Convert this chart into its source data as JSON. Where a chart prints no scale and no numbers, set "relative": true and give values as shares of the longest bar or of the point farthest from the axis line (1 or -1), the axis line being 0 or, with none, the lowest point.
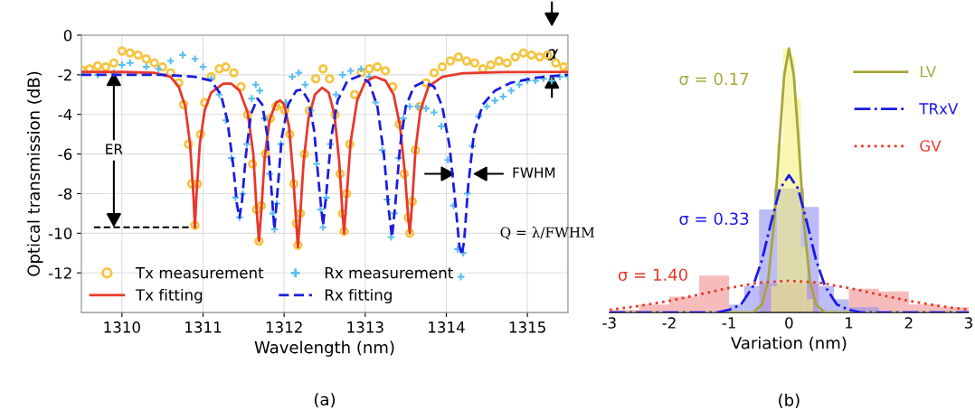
{
  "chart_data": [
    {
      "type": "line",
      "title": "(a)",
      "xlabel": "Wavelength (nm)",
      "ylabel": "Optical transmission (dB)",
      "xlim": [
        1309.5,
        1315.5
      ],
      "xticks": [
        1310,
        1311,
        1312,
        1313,
        1314,
        1315
      ],
      "ylim": [
        -14,
        0
      ],
      "yticks": [
        0,
        -2,
        -4,
        -6,
        -8,
        -10,
        -12
      ],
      "grid": true,
      "legend": "bottom left",
      "series": [
        {
          "name": "Tx measurement",
          "type": "scatter",
          "marker": "circle",
          "color": "#f5c542",
          "x": [
            1309.5,
            1309.6,
            1309.7,
            1309.8,
            1309.9,
            1310.0,
            1310.1,
            1310.2,
            1310.3,
            1310.4,
            1310.5,
            1310.6,
            1310.7,
            1310.76,
            1310.82,
            1310.86,
            1310.9,
            1310.93,
            1310.97,
            1311.02,
            1311.1,
            1311.2,
            1311.28,
            1311.38,
            1311.47,
            1311.55,
            1311.61,
            1311.66,
            1311.69,
            1311.72,
            1311.77,
            1311.83,
            1311.9,
            1311.95,
            1312.01,
            1312.07,
            1312.12,
            1312.15,
            1312.17,
            1312.2,
            1312.25,
            1312.31,
            1312.39,
            1312.48,
            1312.56,
            1312.63,
            1312.69,
            1312.72,
            1312.74,
            1312.77,
            1312.81,
            1312.87,
            1312.95,
            1313.05,
            1313.15,
            1313.25,
            1313.34,
            1313.42,
            1313.48,
            1313.53,
            1313.55,
            1313.58,
            1313.62,
            1313.67,
            1313.75,
            1313.85,
            1313.95,
            1314.05,
            1314.15,
            1314.25,
            1314.35,
            1314.45,
            1314.55,
            1314.65,
            1314.75,
            1314.85,
            1314.95,
            1315.05,
            1315.15,
            1315.25,
            1315.35,
            1315.45,
            1315.5
          ],
          "values": [
            -1.75,
            -1.7,
            -1.55,
            -1.6,
            -1.4,
            -0.8,
            -0.9,
            -1.0,
            -1.2,
            -1.4,
            -1.6,
            -1.9,
            -2.4,
            -3.5,
            -5.5,
            -7.5,
            -9.6,
            -7.5,
            -5.0,
            -3.4,
            -2.1,
            -1.7,
            -1.6,
            -1.9,
            -2.6,
            -4.0,
            -6.5,
            -8.8,
            -10.4,
            -8.6,
            -6.0,
            -4.2,
            -3.6,
            -3.5,
            -3.8,
            -5.0,
            -7.5,
            -9.5,
            -10.6,
            -9.0,
            -6.0,
            -3.8,
            -2.2,
            -1.7,
            -2.2,
            -4.0,
            -7.0,
            -9.0,
            -9.9,
            -8.0,
            -5.5,
            -3.0,
            -1.9,
            -1.7,
            -1.6,
            -1.8,
            -2.6,
            -4.5,
            -7.0,
            -9.2,
            -10.0,
            -8.4,
            -5.8,
            -3.6,
            -2.4,
            -1.9,
            -1.6,
            -1.3,
            -1.1,
            -1.3,
            -1.4,
            -1.7,
            -1.5,
            -1.3,
            -1.4,
            -1.1,
            -0.9,
            -1.0,
            -1.1,
            -1.0,
            -1.4,
            -1.6,
            -1.8
          ]
        },
        {
          "name": "Tx fitting",
          "line_style": "solid",
          "color": "#e8382a",
          "x": [
            1309.5,
            1310.0,
            1310.4,
            1310.6,
            1310.7,
            1310.78,
            1310.84,
            1310.88,
            1310.9,
            1310.92,
            1310.96,
            1311.02,
            1311.1,
            1311.25,
            1311.35,
            1311.45,
            1311.55,
            1311.62,
            1311.66,
            1311.69,
            1311.72,
            1311.76,
            1311.82,
            1311.9,
            1311.95,
            1312.0,
            1312.06,
            1312.11,
            1312.15,
            1312.17,
            1312.2,
            1312.24,
            1312.3,
            1312.38,
            1312.47,
            1312.55,
            1312.62,
            1312.68,
            1312.72,
            1312.74,
            1312.77,
            1312.82,
            1312.9,
            1313.0,
            1313.12,
            1313.25,
            1313.35,
            1313.43,
            1313.49,
            1313.53,
            1313.55,
            1313.58,
            1313.62,
            1313.68,
            1313.78,
            1313.95,
            1314.2,
            1314.7,
            1315.5
          ],
          "values": [
            -1.85,
            -1.86,
            -1.9,
            -2.1,
            -2.6,
            -3.6,
            -5.5,
            -8.0,
            -9.7,
            -8.0,
            -5.5,
            -3.8,
            -2.9,
            -2.45,
            -2.45,
            -2.8,
            -3.9,
            -6.0,
            -8.8,
            -10.4,
            -8.8,
            -6.2,
            -4.3,
            -3.4,
            -3.3,
            -3.5,
            -4.6,
            -7.0,
            -9.5,
            -10.7,
            -9.0,
            -6.4,
            -4.2,
            -3.0,
            -2.65,
            -2.9,
            -4.0,
            -6.4,
            -9.0,
            -10.0,
            -8.2,
            -5.4,
            -3.3,
            -2.35,
            -2.1,
            -2.3,
            -3.0,
            -4.6,
            -7.0,
            -9.2,
            -10.0,
            -8.4,
            -5.8,
            -3.8,
            -2.6,
            -2.1,
            -1.92,
            -1.87,
            -1.85
          ]
        },
        {
          "name": "Rx measurement",
          "type": "scatter",
          "marker": "cross",
          "color": "#5bbff0",
          "x": [
            1309.5,
            1309.7,
            1309.9,
            1310.0,
            1310.1,
            1310.3,
            1310.45,
            1310.6,
            1310.75,
            1310.9,
            1311.0,
            1311.1,
            1311.2,
            1311.28,
            1311.35,
            1311.4,
            1311.45,
            1311.49,
            1311.54,
            1311.6,
            1311.65,
            1311.7,
            1311.76,
            1311.82,
            1311.86,
            1311.88,
            1311.91,
            1311.96,
            1312.02,
            1312.1,
            1312.18,
            1312.26,
            1312.33,
            1312.4,
            1312.45,
            1312.48,
            1312.52,
            1312.57,
            1312.64,
            1312.72,
            1312.82,
            1312.95,
            1313.05,
            1313.13,
            1313.21,
            1313.27,
            1313.32,
            1313.36,
            1313.41,
            1313.47,
            1313.55,
            1313.65,
            1313.75,
            1313.85,
            1313.94,
            1314.02,
            1314.09,
            1314.14,
            1314.18,
            1314.21,
            1314.26,
            1314.32,
            1314.4,
            1314.5,
            1314.6,
            1314.7,
            1314.8,
            1314.9,
            1315.0,
            1315.1,
            1315.2,
            1315.3,
            1315.4,
            1315.5
          ],
          "values": [
            -1.95,
            -2.0,
            -1.9,
            -1.5,
            -1.4,
            -1.6,
            -1.7,
            -1.3,
            -1.0,
            -1.2,
            -1.6,
            -2.2,
            -3.0,
            -4.3,
            -6.2,
            -8.2,
            -9.2,
            -8.0,
            -5.5,
            -3.2,
            -2.5,
            -2.8,
            -4.2,
            -7.0,
            -9.0,
            -9.8,
            -8.5,
            -5.5,
            -3.4,
            -2.1,
            -1.9,
            -2.5,
            -3.8,
            -6.5,
            -8.8,
            -9.7,
            -8.2,
            -5.5,
            -3.0,
            -2.0,
            -1.8,
            -1.7,
            -2.1,
            -3.4,
            -5.8,
            -8.3,
            -10.2,
            -9.0,
            -6.2,
            -4.2,
            -3.6,
            -3.6,
            -3.7,
            -3.9,
            -4.6,
            -6.3,
            -8.6,
            -10.8,
            -12.2,
            -11.0,
            -8.0,
            -5.6,
            -4.1,
            -3.6,
            -3.3,
            -3.1,
            -2.8,
            -2.5,
            -2.3,
            -2.3,
            -2.2,
            -2.3,
            -2.1,
            -2.1
          ]
        },
        {
          "name": "Rx fitting",
          "line_style": "dashed",
          "color": "#1c1ce0",
          "x": [
            1309.5,
            1310.5,
            1310.9,
            1311.1,
            1311.22,
            1311.3,
            1311.37,
            1311.42,
            1311.45,
            1311.48,
            1311.53,
            1311.59,
            1311.67,
            1311.73,
            1311.79,
            1311.84,
            1311.88,
            1311.92,
            1311.97,
            1312.05,
            1312.15,
            1312.22,
            1312.3,
            1312.37,
            1312.43,
            1312.48,
            1312.52,
            1312.58,
            1312.66,
            1312.78,
            1312.93,
            1313.05,
            1313.15,
            1313.23,
            1313.29,
            1313.33,
            1313.37,
            1313.43,
            1313.5,
            1313.6,
            1313.72,
            1313.85,
            1313.95,
            1314.04,
            1314.11,
            1314.16,
            1314.19,
            1314.22,
            1314.27,
            1314.34,
            1314.45,
            1314.6,
            1314.8,
            1315.1,
            1315.5
          ],
          "values": [
            -2.0,
            -2.0,
            -2.1,
            -2.3,
            -3.0,
            -4.3,
            -6.5,
            -8.6,
            -9.2,
            -8.4,
            -6.0,
            -4.0,
            -3.2,
            -3.5,
            -5.0,
            -7.6,
            -9.8,
            -7.8,
            -5.2,
            -3.5,
            -2.8,
            -2.75,
            -3.3,
            -4.8,
            -7.6,
            -9.6,
            -8.0,
            -5.2,
            -3.3,
            -2.3,
            -2.05,
            -2.4,
            -3.6,
            -6.0,
            -8.8,
            -10.2,
            -8.6,
            -5.6,
            -3.6,
            -2.6,
            -2.35,
            -2.6,
            -3.6,
            -5.6,
            -8.4,
            -10.6,
            -11.1,
            -10.4,
            -7.6,
            -5.0,
            -3.5,
            -2.8,
            -2.4,
            -2.15,
            -2.0
          ]
        }
      ],
      "annotations": [
        {
          "text": "ER",
          "x": 1309.9,
          "y": -9.7
        },
        "FWHM",
        "Q = λ/FWHM",
        "α"
      ],
      "ref_lines": [
        {
          "axis": "y",
          "value": -9.7,
          "color": "#000000",
          "line_style": "dashed"
        }
      ]
    },
    {
      "type": "histogram",
      "title": "(b)",
      "xlabel": "Variation (nm)",
      "relative": true,
      "xlim": [
        -3,
        3
      ],
      "xticks": [
        -3,
        -2,
        -1,
        0,
        1,
        2,
        3
      ],
      "tick_labels": "x",
      "legend": "top right",
      "series": [
        {
          "color": "#f09090",
          "bins": [
            -3,
            -2.5,
            -2,
            -1.5,
            -1,
            -0.5,
            0,
            0.5,
            1,
            1.5,
            2,
            2.5,
            3
          ],
          "values": [
            0.01,
            0.03,
            0.06,
            0.14,
            null,
            0.11,
            0.11,
            null,
            0.09,
            0.08,
            0.03,
            0.02
          ]
        },
        {
          "color": "#8f8ff0",
          "bins": [
            -1,
            -0.75,
            -0.5,
            -0.25,
            0,
            0.25,
            0.5,
            0.75,
            1,
            1.25,
            1.5
          ],
          "values": [
            0.03,
            0.1,
            0.39,
            0.47,
            0.47,
            0.4,
            0.1,
            0.05,
            0.02,
            0.02
          ]
        },
        {
          "color": "#f3f07a",
          "bins": [
            -0.3,
            -0.2,
            -0.1,
            0,
            0.1,
            0.2,
            0.3,
            0.4
          ],
          "values": [
            0.1,
            0.64,
            1.0,
            0.97,
            0.81,
            0.25,
            0.05
          ]
        },
        {
          "name": "LV",
          "type": "line",
          "line_style": "solid",
          "color": "#a6a63a",
          "x": [
            -3,
            -0.6,
            -0.45,
            -0.35,
            -0.25,
            -0.15,
            -0.08,
            0,
            0.08,
            0.15,
            0.25,
            0.35,
            0.45,
            0.6,
            3
          ],
          "values": [
            0,
            0,
            0.03,
            0.12,
            0.34,
            0.68,
            0.9,
            1.0,
            0.9,
            0.68,
            0.34,
            0.12,
            0.03,
            0,
            0
          ]
        },
        {
          "name": "TRxV",
          "type": "line",
          "line_style": "dashdot",
          "color": "#1a1ae6",
          "x": [
            -3,
            -1.2,
            -1.0,
            -0.8,
            -0.6,
            -0.45,
            -0.3,
            -0.15,
            0,
            0.15,
            0.3,
            0.45,
            0.6,
            0.8,
            1.0,
            1.2,
            3
          ],
          "values": [
            0,
            0,
            0.01,
            0.03,
            0.1,
            0.2,
            0.34,
            0.47,
            0.52,
            0.47,
            0.34,
            0.2,
            0.1,
            0.03,
            0.01,
            0,
            0
          ]
        },
        {
          "name": "GV",
          "type": "line",
          "line_style": "dotted",
          "color": "#e8382a",
          "x": [
            -3,
            -2.5,
            -2,
            -1.5,
            -1,
            -0.5,
            0,
            0.5,
            1,
            1.5,
            2,
            2.5,
            3
          ],
          "values": [
            0.01,
            0.025,
            0.044,
            0.068,
            0.093,
            0.113,
            0.12,
            0.113,
            0.093,
            0.068,
            0.044,
            0.025,
            0.01
          ]
        }
      ],
      "annotations": [
        "σ = 0.17",
        "σ = 0.33",
        "σ = 1.40"
      ]
    }
  ]
}
